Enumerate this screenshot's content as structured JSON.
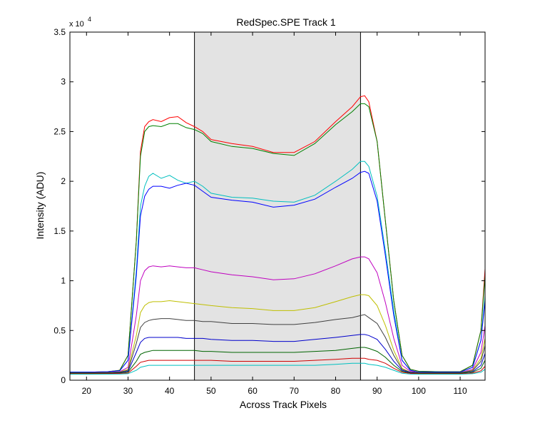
{
  "chart_data": {
    "type": "line",
    "title": "RedSpec.SPE   Track 1",
    "xlabel": "Across Track Pixels",
    "ylabel": "Intensity (ADU)",
    "y_exponent_label": "x 10",
    "y_exponent_power": "4",
    "xlim": [
      16,
      116
    ],
    "ylim": [
      0,
      35000
    ],
    "x_ticks": [
      20,
      30,
      40,
      50,
      60,
      70,
      80,
      90,
      100,
      110
    ],
    "x_tick_labels": [
      "20",
      "30",
      "40",
      "50",
      "60",
      "70",
      "80",
      "90",
      "100",
      "110"
    ],
    "y_ticks": [
      0,
      5000,
      10000,
      15000,
      20000,
      25000,
      30000,
      35000
    ],
    "y_tick_labels": [
      "0",
      "0.5",
      "1",
      "1.5",
      "2",
      "2.5",
      "3",
      "3.5"
    ],
    "highlight_region": [
      46,
      86
    ],
    "grid": false,
    "series": [
      {
        "color": "#ff0000",
        "x": [
          16,
          20,
          25,
          28,
          30,
          32,
          33,
          34,
          35,
          36,
          38,
          40,
          42,
          44,
          46,
          48,
          50,
          55,
          60,
          65,
          70,
          75,
          80,
          84,
          86,
          87,
          88,
          90,
          92,
          94,
          96,
          98,
          100,
          105,
          110,
          113,
          115,
          116
        ],
        "y": [
          800,
          800,
          850,
          1000,
          2500,
          14000,
          23000,
          25500,
          26000,
          26200,
          26000,
          26400,
          26500,
          25900,
          25500,
          25000,
          24200,
          23800,
          23500,
          22900,
          22900,
          24000,
          26000,
          27500,
          28500,
          28600,
          28000,
          24000,
          16000,
          8000,
          2500,
          1100,
          900,
          850,
          850,
          1500,
          5000,
          11200
        ]
      },
      {
        "color": "#008000",
        "x": [
          16,
          20,
          25,
          28,
          30,
          32,
          33,
          34,
          35,
          36,
          38,
          40,
          42,
          44,
          46,
          48,
          50,
          55,
          60,
          65,
          70,
          75,
          80,
          84,
          86,
          87,
          88,
          90,
          92,
          94,
          96,
          98,
          100,
          105,
          110,
          113,
          115,
          116
        ],
        "y": [
          800,
          800,
          850,
          1000,
          2500,
          14000,
          22500,
          25000,
          25500,
          25600,
          25500,
          25800,
          25800,
          25400,
          25200,
          24800,
          24000,
          23500,
          23300,
          22800,
          22600,
          23800,
          25700,
          27000,
          27800,
          27800,
          27500,
          24000,
          16000,
          8000,
          2500,
          1100,
          900,
          850,
          850,
          1500,
          5000,
          10500
        ]
      },
      {
        "color": "#00bfbf",
        "x": [
          16,
          20,
          25,
          28,
          30,
          32,
          33,
          34,
          35,
          36,
          38,
          40,
          42,
          44,
          46,
          48,
          50,
          55,
          60,
          65,
          70,
          75,
          80,
          84,
          86,
          87,
          88,
          90,
          92,
          94,
          96,
          98,
          100,
          105,
          110,
          113,
          115,
          116
        ],
        "y": [
          800,
          800,
          850,
          950,
          2000,
          11000,
          17500,
          19500,
          20500,
          20800,
          20300,
          20600,
          20100,
          19800,
          20000,
          19500,
          18800,
          18400,
          18300,
          18000,
          17900,
          18600,
          20000,
          21200,
          22000,
          22000,
          21500,
          18500,
          13000,
          7000,
          2000,
          1000,
          800,
          800,
          800,
          1300,
          4000,
          8500
        ]
      },
      {
        "color": "#0000ff",
        "x": [
          16,
          20,
          25,
          28,
          30,
          32,
          33,
          34,
          35,
          36,
          38,
          40,
          42,
          44,
          46,
          48,
          50,
          55,
          60,
          65,
          70,
          75,
          80,
          84,
          86,
          87,
          88,
          90,
          92,
          94,
          96,
          98,
          100,
          105,
          110,
          113,
          115,
          116
        ],
        "y": [
          800,
          800,
          850,
          950,
          2000,
          10500,
          16500,
          18500,
          19200,
          19500,
          19500,
          19300,
          19600,
          19800,
          19600,
          19000,
          18400,
          18100,
          17900,
          17400,
          17600,
          18200,
          19400,
          20300,
          20900,
          21000,
          20800,
          18000,
          12500,
          6500,
          2000,
          1000,
          800,
          800,
          800,
          1300,
          4000,
          8000
        ]
      },
      {
        "color": "#bf00bf",
        "x": [
          16,
          20,
          25,
          28,
          30,
          32,
          33,
          34,
          35,
          36,
          38,
          40,
          42,
          44,
          46,
          48,
          50,
          55,
          60,
          65,
          70,
          75,
          80,
          84,
          86,
          87,
          88,
          90,
          92,
          94,
          96,
          98,
          100,
          105,
          110,
          113,
          115,
          116
        ],
        "y": [
          750,
          750,
          780,
          850,
          1300,
          6500,
          10000,
          11000,
          11400,
          11500,
          11400,
          11500,
          11400,
          11300,
          11300,
          11100,
          10900,
          10600,
          10400,
          10100,
          10200,
          10700,
          11500,
          12200,
          12400,
          12400,
          12200,
          10800,
          7800,
          4200,
          1500,
          900,
          750,
          750,
          750,
          1100,
          2800,
          5500
        ]
      },
      {
        "color": "#bfbf00",
        "x": [
          16,
          20,
          25,
          28,
          30,
          32,
          33,
          34,
          35,
          36,
          38,
          40,
          42,
          44,
          46,
          48,
          50,
          55,
          60,
          65,
          70,
          75,
          80,
          84,
          86,
          87,
          88,
          90,
          92,
          94,
          96,
          98,
          100,
          105,
          110,
          113,
          115,
          116
        ],
        "y": [
          750,
          750,
          770,
          820,
          1100,
          4500,
          6800,
          7500,
          7800,
          7900,
          7900,
          8000,
          7900,
          7800,
          7700,
          7600,
          7500,
          7300,
          7200,
          7000,
          7000,
          7300,
          7900,
          8400,
          8600,
          8600,
          8500,
          7500,
          5500,
          3000,
          1200,
          800,
          750,
          750,
          750,
          1000,
          2200,
          4200
        ]
      },
      {
        "color": "#404040",
        "x": [
          16,
          20,
          25,
          28,
          30,
          32,
          33,
          34,
          35,
          36,
          38,
          40,
          42,
          44,
          46,
          48,
          50,
          55,
          60,
          65,
          70,
          75,
          80,
          84,
          86,
          87,
          88,
          90,
          92,
          94,
          96,
          98,
          100,
          105,
          110,
          113,
          115,
          116
        ],
        "y": [
          750,
          750,
          760,
          800,
          1000,
          3700,
          5300,
          5800,
          6000,
          6100,
          6200,
          6200,
          6100,
          6000,
          6000,
          5900,
          5900,
          5700,
          5700,
          5600,
          5600,
          5800,
          6100,
          6300,
          6500,
          6600,
          6300,
          5700,
          4300,
          2500,
          1100,
          800,
          750,
          750,
          750,
          950,
          1900,
          3500
        ]
      },
      {
        "color": "#0000cc",
        "x": [
          16,
          20,
          25,
          28,
          30,
          32,
          33,
          34,
          35,
          36,
          38,
          40,
          42,
          44,
          46,
          48,
          50,
          55,
          60,
          65,
          70,
          75,
          80,
          84,
          86,
          87,
          88,
          90,
          92,
          94,
          96,
          98,
          100,
          105,
          110,
          113,
          115,
          116
        ],
        "y": [
          700,
          700,
          720,
          760,
          900,
          2800,
          3800,
          4200,
          4300,
          4300,
          4300,
          4300,
          4300,
          4200,
          4200,
          4200,
          4100,
          4000,
          4000,
          3900,
          3900,
          4100,
          4300,
          4500,
          4600,
          4600,
          4500,
          4100,
          3100,
          1900,
          1000,
          750,
          700,
          700,
          700,
          850,
          1500,
          2700
        ]
      },
      {
        "color": "#006400",
        "x": [
          16,
          20,
          25,
          28,
          30,
          32,
          33,
          34,
          35,
          36,
          38,
          40,
          42,
          44,
          46,
          48,
          50,
          55,
          60,
          65,
          70,
          75,
          80,
          84,
          86,
          87,
          88,
          90,
          92,
          94,
          96,
          98,
          100,
          105,
          110,
          113,
          115,
          116
        ],
        "y": [
          700,
          700,
          710,
          740,
          820,
          1900,
          2600,
          2800,
          2900,
          3000,
          3000,
          3000,
          3000,
          3000,
          3000,
          2900,
          2900,
          2800,
          2800,
          2800,
          2800,
          2900,
          3000,
          3200,
          3300,
          3300,
          3200,
          2900,
          2300,
          1500,
          900,
          720,
          700,
          700,
          700,
          800,
          1200,
          2000
        ]
      },
      {
        "color": "#d00000",
        "x": [
          16,
          20,
          25,
          28,
          30,
          32,
          33,
          34,
          35,
          36,
          38,
          40,
          42,
          44,
          46,
          48,
          50,
          55,
          60,
          65,
          70,
          75,
          80,
          84,
          86,
          87,
          88,
          90,
          92,
          94,
          96,
          98,
          100,
          105,
          110,
          113,
          115,
          116
        ],
        "y": [
          650,
          650,
          660,
          680,
          720,
          1400,
          1800,
          1900,
          2000,
          2000,
          2000,
          2000,
          2000,
          2000,
          2000,
          2000,
          2000,
          1900,
          1900,
          1900,
          1900,
          2000,
          2100,
          2200,
          2200,
          2200,
          2100,
          2000,
          1700,
          1200,
          800,
          680,
          650,
          650,
          650,
          720,
          950,
          1400
        ]
      },
      {
        "color": "#00c0c0",
        "x": [
          16,
          20,
          25,
          28,
          30,
          32,
          33,
          34,
          35,
          36,
          38,
          40,
          42,
          44,
          46,
          48,
          50,
          55,
          60,
          65,
          70,
          75,
          80,
          84,
          86,
          87,
          88,
          90,
          92,
          94,
          96,
          98,
          100,
          105,
          110,
          113,
          115,
          116
        ],
        "y": [
          600,
          600,
          610,
          620,
          650,
          1000,
          1300,
          1400,
          1500,
          1500,
          1500,
          1500,
          1500,
          1500,
          1500,
          1500,
          1500,
          1500,
          1500,
          1500,
          1500,
          1500,
          1600,
          1700,
          1700,
          1700,
          1600,
          1500,
          1300,
          1000,
          700,
          620,
          600,
          600,
          600,
          650,
          800,
          1100
        ]
      }
    ]
  }
}
